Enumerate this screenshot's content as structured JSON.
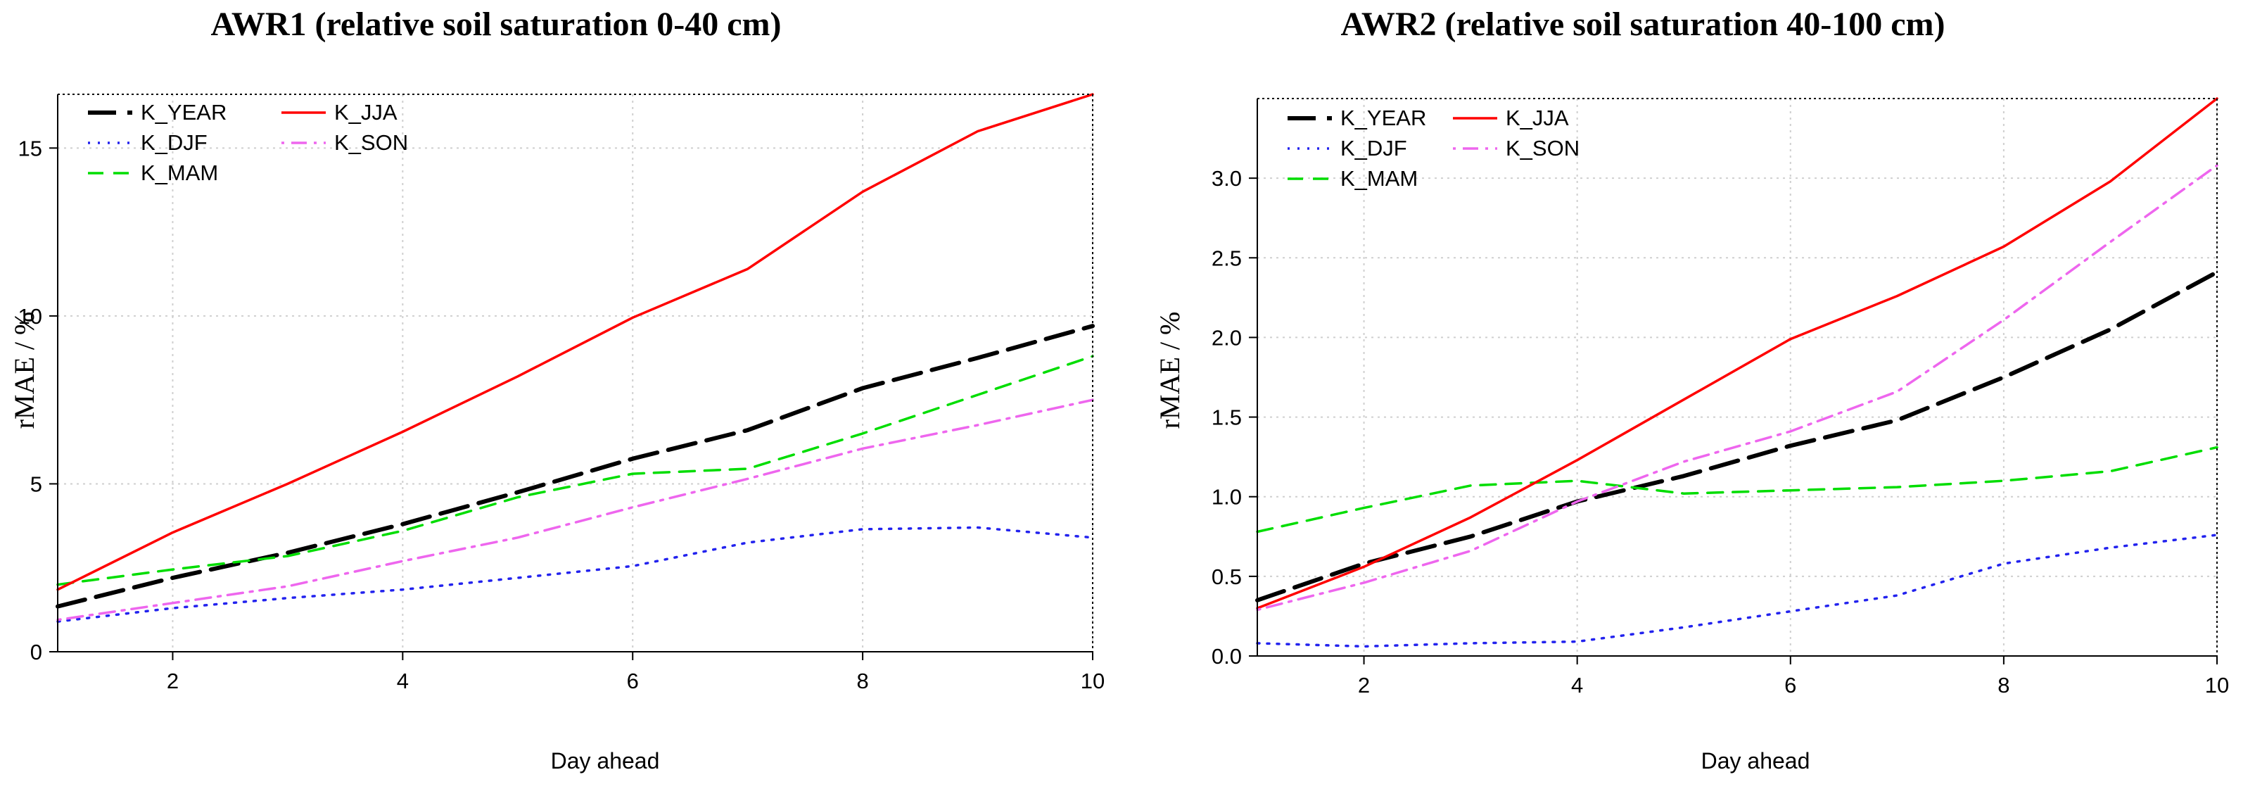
{
  "chart_data": [
    {
      "type": "line",
      "title": "AWR1 (relative soil saturation 0-40 cm)",
      "xlabel": "Day ahead",
      "ylabel": "rMAE / %",
      "xlim": [
        1,
        10
      ],
      "ylim": [
        0,
        16.6
      ],
      "xticks": [
        2,
        4,
        6,
        8,
        10
      ],
      "yticks": [
        0,
        5,
        10,
        15
      ],
      "ytick_labels": [
        "0",
        "5",
        "10",
        "15"
      ],
      "grid": true,
      "legend_position": "top-left",
      "x": [
        1,
        2,
        3,
        4,
        5,
        6,
        7,
        8,
        9,
        10
      ],
      "series": [
        {
          "name": "K_YEAR",
          "color": "#000000",
          "style": "longdash",
          "values": [
            1.35,
            2.2,
            2.95,
            3.8,
            4.75,
            5.75,
            6.6,
            7.85,
            8.75,
            9.7
          ]
        },
        {
          "name": "K_DJF",
          "color": "#2222ee",
          "style": "dotted",
          "values": [
            0.9,
            1.3,
            1.6,
            1.85,
            2.2,
            2.55,
            3.25,
            3.65,
            3.7,
            3.4
          ]
        },
        {
          "name": "K_MAM",
          "color": "#00dd00",
          "style": "dashed",
          "values": [
            2.0,
            2.45,
            2.85,
            3.6,
            4.6,
            5.3,
            5.45,
            6.5,
            7.65,
            8.8
          ]
        },
        {
          "name": "K_JJA",
          "color": "#ff0000",
          "style": "solid",
          "values": [
            1.85,
            3.55,
            5.0,
            6.55,
            8.2,
            9.95,
            11.4,
            13.7,
            15.5,
            16.6
          ]
        },
        {
          "name": "K_SON",
          "color": "#ee66ee",
          "style": "dotdash",
          "values": [
            0.95,
            1.45,
            1.95,
            2.7,
            3.4,
            4.3,
            5.15,
            6.05,
            6.75,
            7.5
          ]
        }
      ]
    },
    {
      "type": "line",
      "title": "AWR2 (relative soil saturation 40-100 cm)",
      "xlabel": "Day ahead",
      "ylabel": "rMAE / %",
      "xlim": [
        1,
        10
      ],
      "ylim": [
        0,
        3.5
      ],
      "xticks": [
        2,
        4,
        6,
        8,
        10
      ],
      "yticks": [
        0,
        0.5,
        1,
        1.5,
        2,
        2.5,
        3
      ],
      "ytick_labels": [
        "0.0",
        "0.5",
        "1.0",
        "1.5",
        "2.0",
        "2.5",
        "3.0"
      ],
      "grid": true,
      "legend_position": "top-left",
      "x": [
        1,
        2,
        3,
        4,
        5,
        6,
        7,
        8,
        9,
        10
      ],
      "series": [
        {
          "name": "K_YEAR",
          "color": "#000000",
          "style": "longdash",
          "values": [
            0.35,
            0.58,
            0.75,
            0.97,
            1.13,
            1.32,
            1.48,
            1.75,
            2.05,
            2.41
          ]
        },
        {
          "name": "K_DJF",
          "color": "#2222ee",
          "style": "dotted",
          "values": [
            0.08,
            0.06,
            0.08,
            0.09,
            0.18,
            0.28,
            0.38,
            0.58,
            0.68,
            0.76
          ]
        },
        {
          "name": "K_MAM",
          "color": "#00dd00",
          "style": "dashed",
          "values": [
            0.78,
            0.93,
            1.07,
            1.1,
            1.02,
            1.04,
            1.06,
            1.1,
            1.16,
            1.31
          ]
        },
        {
          "name": "K_JJA",
          "color": "#ff0000",
          "style": "solid",
          "values": [
            0.3,
            0.56,
            0.87,
            1.23,
            1.61,
            1.99,
            2.26,
            2.57,
            2.98,
            3.5
          ]
        },
        {
          "name": "K_SON",
          "color": "#ee66ee",
          "style": "dotdash",
          "values": [
            0.29,
            0.46,
            0.66,
            0.97,
            1.22,
            1.41,
            1.66,
            2.11,
            2.6,
            3.08
          ]
        }
      ]
    }
  ]
}
